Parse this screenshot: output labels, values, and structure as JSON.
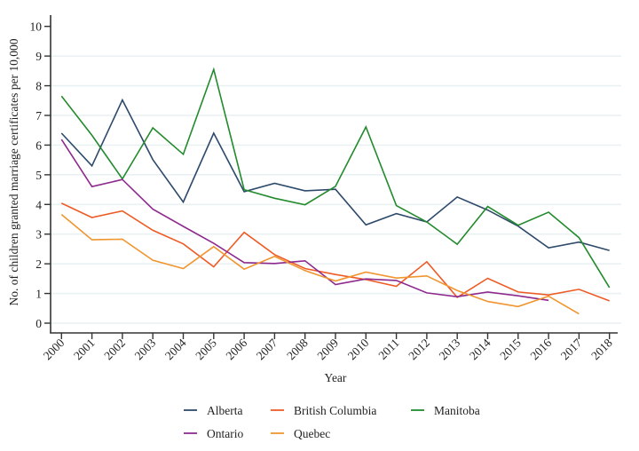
{
  "chart_data": {
    "type": "line",
    "title": "",
    "xlabel": "Year",
    "ylabel": "No. of children granted marriage certificates per 10,000",
    "x": [
      2000,
      2001,
      2002,
      2003,
      2004,
      2005,
      2006,
      2007,
      2008,
      2009,
      2010,
      2011,
      2012,
      2013,
      2014,
      2015,
      2016,
      2017,
      2018
    ],
    "x_tick_labels": [
      "2000",
      "2001",
      "2002",
      "2003",
      "2004",
      "2005",
      "2006",
      "2007",
      "2008",
      "2009",
      "2010",
      "2011",
      "2012",
      "2013",
      "2014",
      "2015",
      "2016",
      "2017",
      "2018"
    ],
    "xlim": [
      2000,
      2018
    ],
    "ylim": [
      0,
      10
    ],
    "y_ticks": [
      0,
      1,
      2,
      3,
      4,
      5,
      6,
      7,
      8,
      9,
      10
    ],
    "y_tick_labels": [
      "0",
      "1",
      "2",
      "3",
      "4",
      "5",
      "6",
      "7",
      "8",
      "9",
      "10"
    ],
    "grid": "horizontal",
    "legend_position": "bottom",
    "series": [
      {
        "name": "Alberta",
        "color": "#2e4a6b",
        "values": [
          6.4,
          5.3,
          7.52,
          5.51,
          4.08,
          6.4,
          4.43,
          4.71,
          4.46,
          4.51,
          3.31,
          3.69,
          3.41,
          4.25,
          3.81,
          3.27,
          2.54,
          2.73,
          2.45
        ]
      },
      {
        "name": "British Columbia",
        "color": "#ee5b25",
        "values": [
          4.04,
          3.56,
          3.78,
          3.13,
          2.67,
          1.9,
          3.06,
          2.31,
          1.84,
          1.64,
          1.47,
          1.24,
          2.07,
          0.87,
          1.51,
          1.05,
          0.95,
          1.14,
          0.75
        ]
      },
      {
        "name": "Manitoba",
        "color": "#238b2d",
        "values": [
          7.65,
          6.33,
          4.86,
          6.58,
          5.69,
          8.55,
          4.5,
          4.21,
          3.99,
          4.61,
          6.61,
          3.96,
          3.41,
          2.66,
          3.93,
          3.3,
          3.74,
          2.88,
          1.2
        ]
      },
      {
        "name": "Ontario",
        "color": "#8e2a8e",
        "values": [
          6.19,
          4.6,
          4.84,
          3.84,
          3.26,
          2.69,
          2.04,
          2.01,
          2.1,
          1.3,
          1.49,
          1.44,
          1.02,
          0.89,
          1.05,
          0.92,
          0.77,
          null,
          null
        ]
      },
      {
        "name": "Quebec",
        "color": "#f0952f",
        "values": [
          3.66,
          2.81,
          2.83,
          2.12,
          1.84,
          2.58,
          1.82,
          2.25,
          1.77,
          1.42,
          1.72,
          1.52,
          1.59,
          1.1,
          0.73,
          0.56,
          0.91,
          0.31,
          null
        ]
      }
    ],
    "legend": [
      {
        "label": "Alberta",
        "color": "#2e4a6b"
      },
      {
        "label": "British Columbia",
        "color": "#ee5b25"
      },
      {
        "label": "Manitoba",
        "color": "#238b2d"
      },
      {
        "label": "Ontario",
        "color": "#8e2a8e"
      },
      {
        "label": "Quebec",
        "color": "#f0952f"
      }
    ],
    "styles": {
      "gridline_color": "#e9f1f3",
      "axis_color": "#333333"
    }
  }
}
